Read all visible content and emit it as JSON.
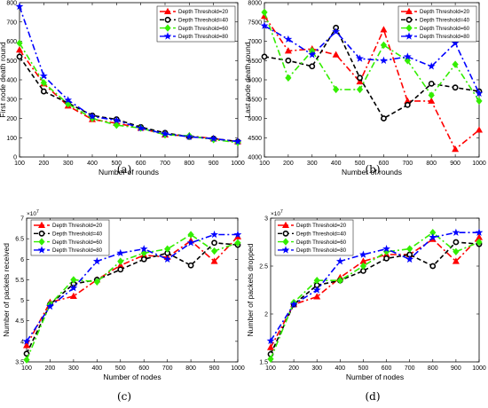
{
  "legend_labels": [
    "Depth Threshold=20",
    "Depth Threshold=40",
    "Depth Threshold=60",
    "Depth Threshold=80"
  ],
  "colors": {
    "dt20": "#ff0000",
    "dt40": "#000000",
    "dt60": "#33ee00",
    "dt80": "#0000ff"
  },
  "chart_data": [
    {
      "type": "line",
      "caption": "(a)",
      "xlabel": "Number of rounds",
      "ylabel": "First node death round",
      "x": [
        100,
        200,
        300,
        400,
        500,
        600,
        700,
        800,
        900,
        1000
      ],
      "xlim": [
        100,
        1000
      ],
      "ylim": [
        0,
        800
      ],
      "yticks": [
        0,
        100,
        200,
        300,
        400,
        500,
        600,
        700,
        800
      ],
      "exponent": "",
      "legend_position": "top-right",
      "series": [
        {
          "name": "Depth Threshold=20",
          "values": [
            555,
            380,
            265,
            195,
            175,
            150,
            115,
            110,
            95,
            80
          ]
        },
        {
          "name": "Depth Threshold=40",
          "values": [
            520,
            340,
            280,
            215,
            195,
            155,
            125,
            105,
            95,
            80
          ]
        },
        {
          "name": "Depth Threshold=60",
          "values": [
            590,
            385,
            275,
            200,
            165,
            150,
            115,
            110,
            90,
            75
          ]
        },
        {
          "name": "Depth Threshold=80",
          "values": [
            780,
            420,
            295,
            210,
            190,
            150,
            120,
            105,
            95,
            80
          ]
        }
      ]
    },
    {
      "type": "line",
      "caption": "(b)",
      "xlabel": "Number of rounds",
      "ylabel": "Last node death round",
      "x": [
        100,
        200,
        300,
        400,
        500,
        600,
        700,
        800,
        900,
        1000
      ],
      "xlim": [
        100,
        1000
      ],
      "ylim": [
        4000,
        8000
      ],
      "yticks": [
        4000,
        4500,
        5000,
        5500,
        6000,
        6500,
        7000,
        7500,
        8000
      ],
      "exponent": "",
      "legend_position": "top-right",
      "series": [
        {
          "name": "Depth Threshold=20",
          "values": [
            7650,
            6750,
            6800,
            6650,
            5950,
            7300,
            5450,
            5450,
            4200,
            4700
          ]
        },
        {
          "name": "Depth Threshold=40",
          "values": [
            6600,
            6500,
            6350,
            7350,
            6050,
            5000,
            5350,
            5900,
            5800,
            5700
          ]
        },
        {
          "name": "Depth Threshold=60",
          "values": [
            7750,
            6050,
            6750,
            5750,
            5750,
            6900,
            6500,
            5600,
            6400,
            5450
          ]
        },
        {
          "name": "Depth Threshold=80",
          "values": [
            7400,
            7050,
            6650,
            7250,
            6550,
            6500,
            6600,
            6350,
            6950,
            5650
          ]
        }
      ]
    },
    {
      "type": "line",
      "caption": "(c)",
      "xlabel": "Number of nodes",
      "ylabel": "Number of packets received",
      "x": [
        100,
        200,
        300,
        400,
        500,
        600,
        700,
        800,
        900,
        1000
      ],
      "xlim": [
        100,
        1000
      ],
      "ylim": [
        3.5,
        7
      ],
      "yticks": [
        3.5,
        4,
        4.5,
        5,
        5.5,
        6,
        6.5,
        7
      ],
      "exponent": "×10",
      "exponent_power": "7",
      "legend_position": "top-left",
      "series": [
        {
          "name": "Depth Threshold=20",
          "values": [
            3.9,
            4.95,
            5.1,
            5.5,
            5.85,
            6.1,
            6.05,
            6.45,
            5.95,
            6.55
          ]
        },
        {
          "name": "Depth Threshold=40",
          "values": [
            3.7,
            4.9,
            5.4,
            5.5,
            5.75,
            6.0,
            6.15,
            5.85,
            6.4,
            6.35
          ]
        },
        {
          "name": "Depth Threshold=60",
          "values": [
            3.55,
            4.9,
            5.5,
            5.45,
            5.95,
            6.15,
            6.25,
            6.6,
            6.2,
            6.4
          ]
        },
        {
          "name": "Depth Threshold=80",
          "values": [
            4.0,
            4.85,
            5.3,
            5.95,
            6.15,
            6.25,
            6.0,
            6.4,
            6.6,
            6.6
          ]
        }
      ]
    },
    {
      "type": "line",
      "caption": "(d)",
      "xlabel": "Number of nodes",
      "ylabel": "Number of packets dropped",
      "x": [
        100,
        200,
        300,
        400,
        500,
        600,
        700,
        800,
        900,
        1000
      ],
      "xlim": [
        100,
        1000
      ],
      "ylim": [
        1.5,
        3
      ],
      "yticks": [
        1.5,
        2,
        2.5,
        3
      ],
      "exponent": "×10",
      "exponent_power": "7",
      "legend_position": "top-left",
      "series": [
        {
          "name": "Depth Threshold=20",
          "values": [
            1.65,
            2.1,
            2.18,
            2.38,
            2.55,
            2.62,
            2.62,
            2.78,
            2.55,
            2.8
          ]
        },
        {
          "name": "Depth Threshold=40",
          "values": [
            1.58,
            2.1,
            2.3,
            2.35,
            2.45,
            2.58,
            2.62,
            2.5,
            2.75,
            2.73
          ]
        },
        {
          "name": "Depth Threshold=60",
          "values": [
            1.53,
            2.12,
            2.35,
            2.35,
            2.5,
            2.65,
            2.68,
            2.85,
            2.65,
            2.75
          ]
        },
        {
          "name": "Depth Threshold=80",
          "values": [
            1.72,
            2.1,
            2.25,
            2.55,
            2.62,
            2.68,
            2.57,
            2.8,
            2.85,
            2.85
          ]
        }
      ]
    }
  ]
}
